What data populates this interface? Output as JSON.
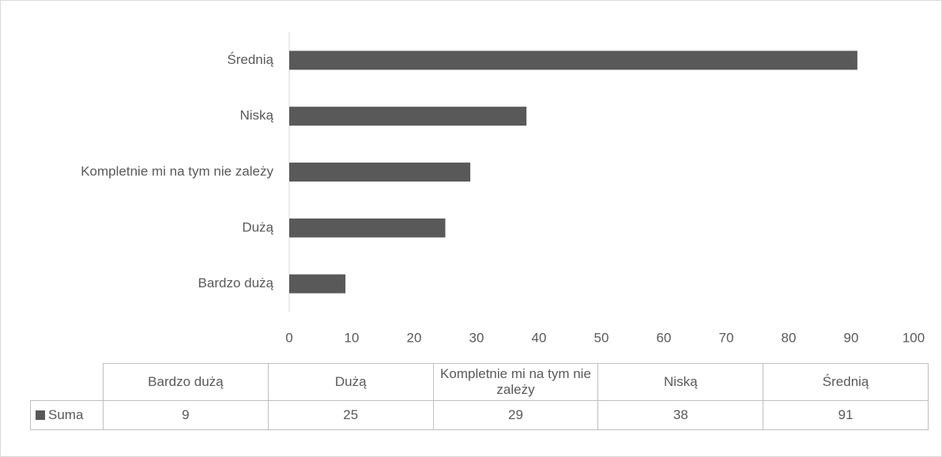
{
  "chart_data": {
    "type": "bar",
    "orientation": "horizontal",
    "categories": [
      "Bardzo dużą",
      "Dużą",
      "Kompletnie mi na tym nie zależy",
      "Niską",
      "Średnią"
    ],
    "series": [
      {
        "name": "Suma",
        "color": "#595959",
        "values": [
          9,
          25,
          29,
          38,
          91
        ]
      }
    ],
    "xlim": [
      0,
      100
    ],
    "xticks": [
      0,
      10,
      20,
      30,
      40,
      50,
      60,
      70,
      80,
      90,
      100
    ],
    "grid": false,
    "data_table": true
  }
}
